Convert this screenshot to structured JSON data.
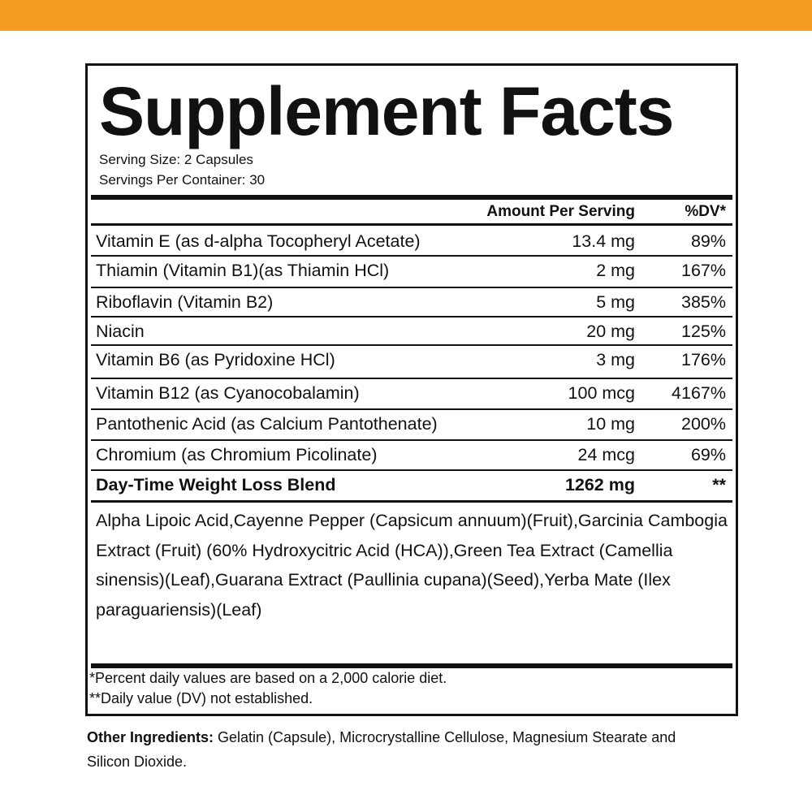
{
  "colors": {
    "accent_bar": "#F39C21",
    "text": "#111111"
  },
  "label": {
    "title": "Supplement Facts",
    "serving_size": "Serving Size: 2 Capsules",
    "servings_per_container": "Servings Per Container: 30",
    "header": {
      "amount": "Amount Per Serving",
      "dv": "%DV*"
    },
    "rows": [
      {
        "name": "Vitamin E (as d-alpha Tocopheryl Acetate)",
        "amount": "13.4 mg",
        "dv": "89%"
      },
      {
        "name": "Thiamin (Vitamin B1)(as Thiamin HCl)",
        "amount": "2 mg",
        "dv": "167%"
      },
      {
        "name": "Riboflavin (Vitamin B2)",
        "amount": "5 mg",
        "dv": "385%"
      },
      {
        "name": "Niacin",
        "amount": "20 mg",
        "dv": "125%"
      },
      {
        "name": "Vitamin B6 (as Pyridoxine HCl)",
        "amount": "3 mg",
        "dv": "176%"
      },
      {
        "name": "Vitamin B12 (as Cyanocobalamin)",
        "amount": "100 mcg",
        "dv": "4167%"
      },
      {
        "name": "Pantothenic Acid (as Calcium Pantothenate)",
        "amount": "10 mg",
        "dv": "200%"
      },
      {
        "name": "Chromium (as Chromium Picolinate)",
        "amount": "24 mcg",
        "dv": "69%"
      },
      {
        "name": "Day-Time Weight Loss Blend",
        "amount": "1262 mg",
        "dv": "**",
        "bold": true
      }
    ],
    "blend_ingredients": "Alpha Lipoic Acid,Cayenne Pepper (Capsicum annuum)(Fruit),Garcinia Cambogia Extract (Fruit) (60% Hydroxycitric Acid (HCA)),Green Tea Extract (Camellia sinensis)(Leaf),Guarana Extract (Paullinia cupana)(Seed),Yerba Mate (Ilex paraguariensis)(Leaf)",
    "footnote_1": "*Percent daily values are based on a 2,000 calorie diet.",
    "footnote_2": "**Daily value (DV) not established."
  },
  "other_ingredients": {
    "label": "Other Ingredients:",
    "text": " Gelatin (Capsule), Microcrystalline Cellulose, Magnesium Stearate and Silicon Dioxide."
  }
}
